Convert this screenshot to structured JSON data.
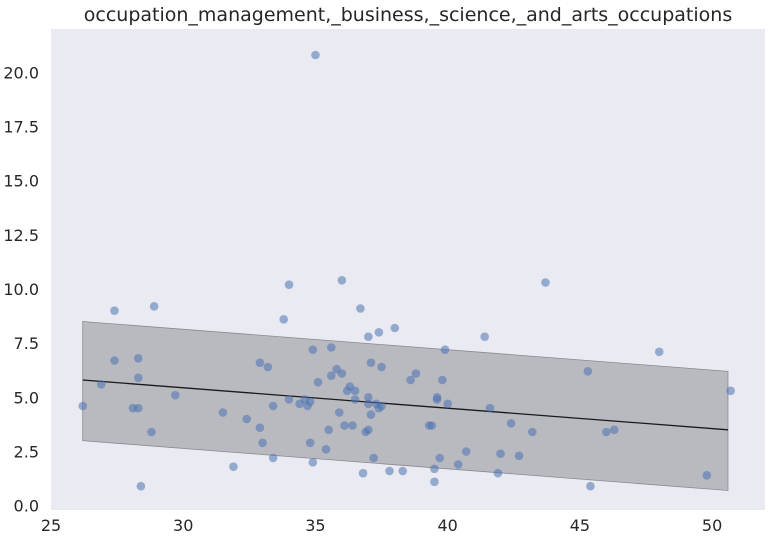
{
  "chart_data": {
    "type": "scatter",
    "title": "occupation_management,_business,_science,_and_arts_occupations",
    "xlabel": "",
    "ylabel": "",
    "xlim": [
      25,
      52
    ],
    "ylim": [
      -0.2,
      22
    ],
    "xticks": [
      25,
      30,
      35,
      40,
      45,
      50
    ],
    "yticks": [
      0.0,
      2.5,
      5.0,
      7.5,
      10.0,
      12.5,
      15.0,
      17.5,
      20.0
    ],
    "grid": false,
    "colors": {
      "background": "#eaeaf2",
      "point": "#4c72b0",
      "band_fill": "#9e9ea4",
      "trend_line": "#1a1a1a"
    },
    "points": [
      {
        "x": 26.2,
        "y": 4.6
      },
      {
        "x": 26.9,
        "y": 5.6
      },
      {
        "x": 27.4,
        "y": 9.0
      },
      {
        "x": 27.4,
        "y": 6.7
      },
      {
        "x": 28.1,
        "y": 4.5
      },
      {
        "x": 28.3,
        "y": 6.8
      },
      {
        "x": 28.3,
        "y": 5.9
      },
      {
        "x": 28.3,
        "y": 4.5
      },
      {
        "x": 28.4,
        "y": 0.9
      },
      {
        "x": 28.8,
        "y": 3.4
      },
      {
        "x": 28.9,
        "y": 9.2
      },
      {
        "x": 29.7,
        "y": 5.1
      },
      {
        "x": 31.5,
        "y": 4.3
      },
      {
        "x": 31.9,
        "y": 1.8
      },
      {
        "x": 32.4,
        "y": 4.0
      },
      {
        "x": 32.9,
        "y": 6.6
      },
      {
        "x": 32.9,
        "y": 3.6
      },
      {
        "x": 33.0,
        "y": 2.9
      },
      {
        "x": 33.2,
        "y": 6.4
      },
      {
        "x": 33.4,
        "y": 4.6
      },
      {
        "x": 33.4,
        "y": 2.2
      },
      {
        "x": 33.8,
        "y": 8.6
      },
      {
        "x": 34.0,
        "y": 10.2
      },
      {
        "x": 34.0,
        "y": 4.9
      },
      {
        "x": 34.4,
        "y": 4.7
      },
      {
        "x": 34.6,
        "y": 4.9
      },
      {
        "x": 34.7,
        "y": 4.6
      },
      {
        "x": 34.8,
        "y": 4.8
      },
      {
        "x": 34.8,
        "y": 2.9
      },
      {
        "x": 34.9,
        "y": 7.2
      },
      {
        "x": 34.9,
        "y": 2.0
      },
      {
        "x": 35.0,
        "y": 20.8
      },
      {
        "x": 35.1,
        "y": 5.7
      },
      {
        "x": 35.4,
        "y": 2.6
      },
      {
        "x": 35.5,
        "y": 3.5
      },
      {
        "x": 35.6,
        "y": 6.0
      },
      {
        "x": 35.6,
        "y": 7.3
      },
      {
        "x": 35.8,
        "y": 6.3
      },
      {
        "x": 35.9,
        "y": 4.3
      },
      {
        "x": 36.0,
        "y": 6.1
      },
      {
        "x": 36.0,
        "y": 10.4
      },
      {
        "x": 36.1,
        "y": 3.7
      },
      {
        "x": 36.2,
        "y": 5.3
      },
      {
        "x": 36.3,
        "y": 5.5
      },
      {
        "x": 36.4,
        "y": 3.7
      },
      {
        "x": 36.5,
        "y": 5.3
      },
      {
        "x": 36.5,
        "y": 4.9
      },
      {
        "x": 36.7,
        "y": 9.1
      },
      {
        "x": 36.8,
        "y": 1.5
      },
      {
        "x": 36.9,
        "y": 3.4
      },
      {
        "x": 37.0,
        "y": 5.0
      },
      {
        "x": 37.0,
        "y": 4.7
      },
      {
        "x": 37.0,
        "y": 7.8
      },
      {
        "x": 37.0,
        "y": 3.5
      },
      {
        "x": 37.1,
        "y": 6.6
      },
      {
        "x": 37.1,
        "y": 4.2
      },
      {
        "x": 37.2,
        "y": 2.2
      },
      {
        "x": 37.3,
        "y": 4.7
      },
      {
        "x": 37.4,
        "y": 4.5
      },
      {
        "x": 37.4,
        "y": 8.0
      },
      {
        "x": 37.5,
        "y": 4.6
      },
      {
        "x": 37.5,
        "y": 6.4
      },
      {
        "x": 37.8,
        "y": 1.6
      },
      {
        "x": 38.0,
        "y": 8.2
      },
      {
        "x": 38.3,
        "y": 1.6
      },
      {
        "x": 38.6,
        "y": 5.8
      },
      {
        "x": 38.8,
        "y": 6.1
      },
      {
        "x": 39.3,
        "y": 3.7
      },
      {
        "x": 39.4,
        "y": 3.7
      },
      {
        "x": 39.5,
        "y": 1.7
      },
      {
        "x": 39.5,
        "y": 1.1
      },
      {
        "x": 39.6,
        "y": 5.0
      },
      {
        "x": 39.6,
        "y": 4.9
      },
      {
        "x": 39.7,
        "y": 2.2
      },
      {
        "x": 39.8,
        "y": 5.8
      },
      {
        "x": 39.9,
        "y": 7.2
      },
      {
        "x": 40.0,
        "y": 4.7
      },
      {
        "x": 40.4,
        "y": 1.9
      },
      {
        "x": 40.7,
        "y": 2.5
      },
      {
        "x": 41.4,
        "y": 7.8
      },
      {
        "x": 41.6,
        "y": 4.5
      },
      {
        "x": 41.9,
        "y": 1.5
      },
      {
        "x": 42.0,
        "y": 2.4
      },
      {
        "x": 42.4,
        "y": 3.8
      },
      {
        "x": 42.7,
        "y": 2.3
      },
      {
        "x": 43.2,
        "y": 3.4
      },
      {
        "x": 43.7,
        "y": 10.3
      },
      {
        "x": 45.3,
        "y": 6.2
      },
      {
        "x": 45.4,
        "y": 0.9
      },
      {
        "x": 46.0,
        "y": 3.4
      },
      {
        "x": 46.3,
        "y": 3.5
      },
      {
        "x": 48.0,
        "y": 7.1
      },
      {
        "x": 49.8,
        "y": 1.4
      },
      {
        "x": 50.7,
        "y": 5.3
      }
    ],
    "trend_line": {
      "x": [
        26.2,
        50.6
      ],
      "y": [
        5.8,
        3.5
      ]
    },
    "confidence_band": {
      "x": [
        26.2,
        50.6
      ],
      "upper": [
        8.5,
        6.2
      ],
      "lower": [
        3.0,
        0.7
      ]
    }
  }
}
